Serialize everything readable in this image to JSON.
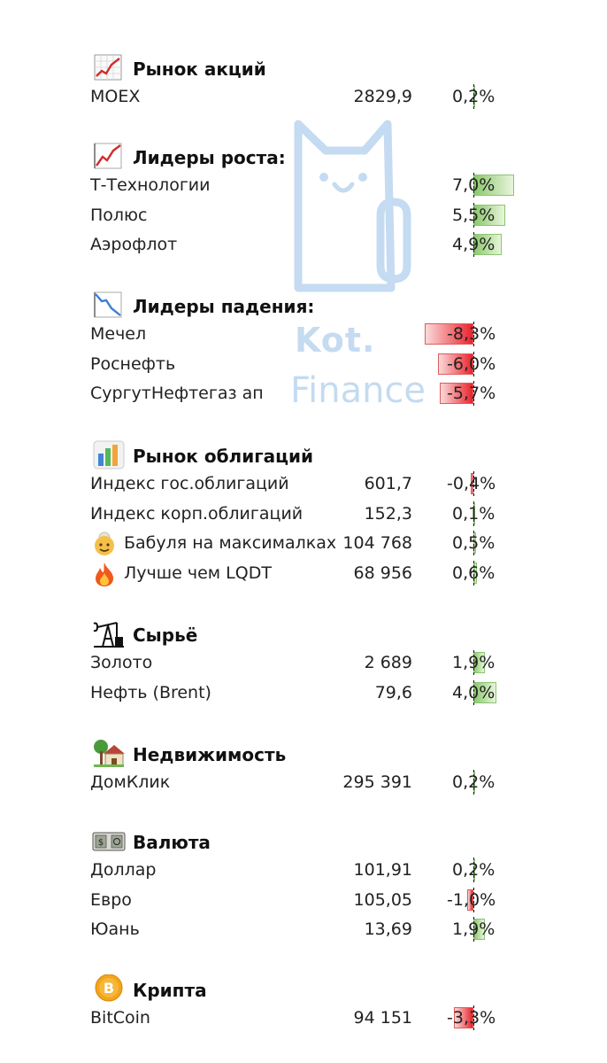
{
  "watermark": {
    "line1": "Kot.",
    "line2": "Finance"
  },
  "colors": {
    "positive_bar": "#8bc86b",
    "negative_bar": "#e9232c",
    "watermark": "#c4dbf1"
  },
  "sections": [
    {
      "id": "stocks",
      "title": "Рынок акций",
      "icon": "chart-up-grid-icon",
      "rows": [
        {
          "name": "MOEX",
          "value": "2829,9",
          "pct": "0,2%",
          "change": 0.2
        }
      ]
    },
    {
      "id": "gainers",
      "title": "Лидеры роста:",
      "icon": "chart-increasing-icon",
      "rows": [
        {
          "name": "Т-Технологии",
          "value": "",
          "pct": "7,0%",
          "change": 7.0
        },
        {
          "name": "Полюс",
          "value": "",
          "pct": "5,5%",
          "change": 5.5
        },
        {
          "name": "Аэрофлот",
          "value": "",
          "pct": "4,9%",
          "change": 4.9
        }
      ]
    },
    {
      "id": "losers",
      "title": "Лидеры падения:",
      "icon": "chart-decreasing-icon",
      "rows": [
        {
          "name": "Мечел",
          "value": "",
          "pct": "-8,3%",
          "change": -8.3
        },
        {
          "name": "Роснефть",
          "value": "",
          "pct": "-6,0%",
          "change": -6.0
        },
        {
          "name": "СургутНефтегаз ап",
          "value": "",
          "pct": "-5,7%",
          "change": -5.7
        }
      ]
    },
    {
      "id": "bonds",
      "title": "Рынок облигаций",
      "icon": "bar-chart-icon",
      "rows": [
        {
          "name": "Индекс гос.облигаций",
          "value": "601,7",
          "pct": "-0,4%",
          "change": -0.4
        },
        {
          "name": "Индекс корп.облигаций",
          "value": "152,3",
          "pct": "0,1%",
          "change": 0.1
        },
        {
          "name": "Бабуля на максималках",
          "value": "104 768",
          "pct": "0,5%",
          "change": 0.5,
          "icon": "grandma-icon"
        },
        {
          "name": "Лучше чем LQDT",
          "value": "68 956",
          "pct": "0,6%",
          "change": 0.6,
          "icon": "fire-icon"
        }
      ]
    },
    {
      "id": "commodities",
      "title": "Сырьё",
      "icon": "oil-pump-icon",
      "rows": [
        {
          "name": "Золото",
          "value": "2 689",
          "pct": "1,9%",
          "change": 1.9
        },
        {
          "name": "Нефть (Brent)",
          "value": "79,6",
          "pct": "4,0%",
          "change": 4.0
        }
      ]
    },
    {
      "id": "realty",
      "title": "Недвижимость",
      "icon": "house-with-garden-icon",
      "rows": [
        {
          "name": "ДомКлик",
          "value": "295 391",
          "pct": "0,2%",
          "change": 0.2
        }
      ]
    },
    {
      "id": "fx",
      "title": "Валюта",
      "icon": "banknote-icon",
      "rows": [
        {
          "name": "Доллар",
          "value": "101,91",
          "pct": "0,2%",
          "change": 0.2
        },
        {
          "name": "Евро",
          "value": "105,05",
          "pct": "-1,0%",
          "change": -1.0
        },
        {
          "name": "Юань",
          "value": "13,69",
          "pct": "1,9%",
          "change": 1.9
        }
      ]
    },
    {
      "id": "crypto",
      "title": "Крипта",
      "icon": "bitcoin-icon",
      "rows": [
        {
          "name": "BitCoin",
          "value": "94 151",
          "pct": "-3,3%",
          "change": -3.3
        }
      ]
    }
  ]
}
